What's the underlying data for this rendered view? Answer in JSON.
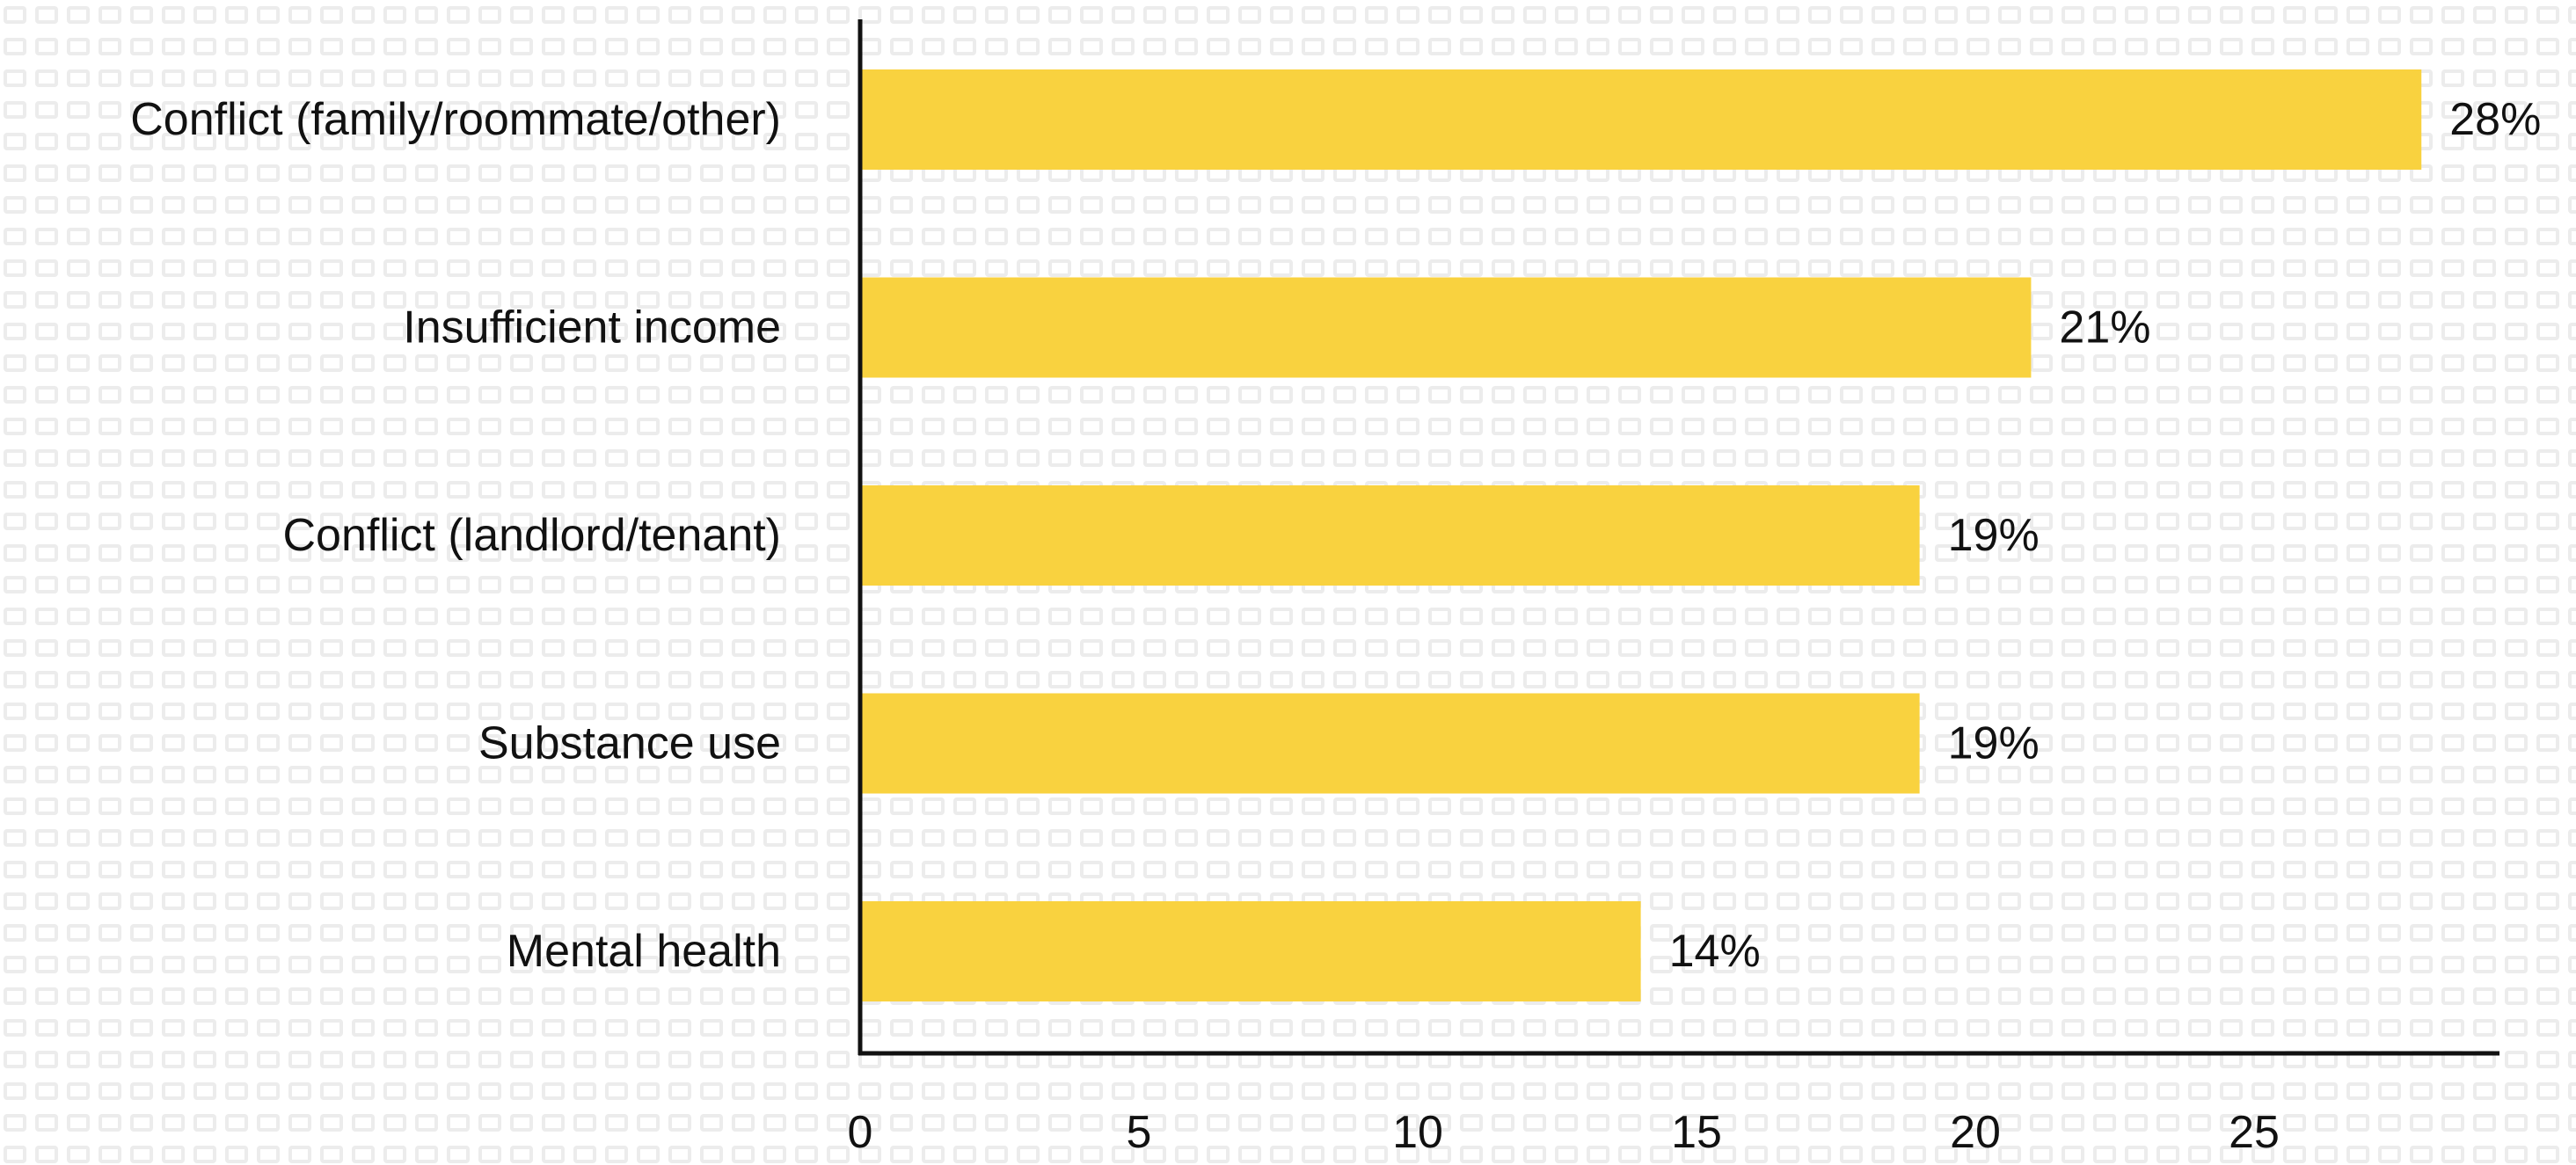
{
  "chart_data": {
    "type": "bar",
    "orientation": "horizontal",
    "title": "",
    "xlabel": "",
    "ylabel": "",
    "categories": [
      "Conflict (family/roommate/other)",
      "Insufficient income",
      "Conflict (landlord/tenant)",
      "Substance use",
      "Mental health"
    ],
    "values": [
      28,
      21,
      19,
      19,
      14
    ],
    "value_labels": [
      "28%",
      "21%",
      "19%",
      "19%",
      "14%"
    ],
    "xlim": [
      0,
      29.4
    ],
    "xticks": [
      0,
      5,
      10,
      15,
      20,
      25
    ],
    "xtick_labels": [
      "0",
      "5",
      "10",
      "15",
      "20",
      "25"
    ],
    "grid": false,
    "legend": "none"
  },
  "colors": {
    "bar": "#F9D23F",
    "axis": "#111111",
    "text": "#111111",
    "background": "#ffffff",
    "pattern": "#ececec"
  }
}
